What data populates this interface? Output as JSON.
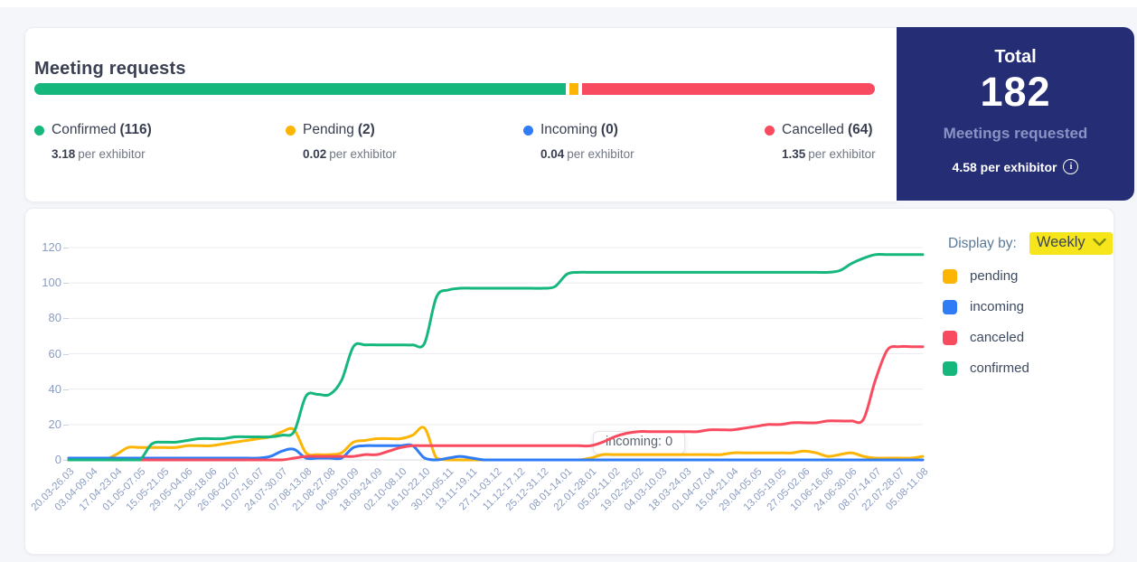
{
  "colors": {
    "confirmed": "#15b77d",
    "pending": "#fcb405",
    "incoming": "#2e7cf6",
    "cancelled": "#f94b5f",
    "navy": "#252e75",
    "highlight": "#f7e51c",
    "grid": "#ebecf1",
    "zero_line": "#d9dbe3"
  },
  "header": {
    "title": "Meeting requests",
    "stats": [
      {
        "key": "confirmed",
        "label": "Confirmed",
        "count": "(116)",
        "count_num": 116,
        "per": "3.18",
        "per_suffix": "per exhibitor",
        "color": "#15b77d"
      },
      {
        "key": "pending",
        "label": "Pending",
        "count": "(2)",
        "count_num": 2,
        "per": "0.02",
        "per_suffix": "per exhibitor",
        "color": "#fcb405"
      },
      {
        "key": "incoming",
        "label": "Incoming",
        "count": "(0)",
        "count_num": 0,
        "per": "0.04",
        "per_suffix": "per exhibitor",
        "color": "#2e7cf6"
      },
      {
        "key": "cancelled",
        "label": "Cancelled",
        "count": "(64)",
        "count_num": 64,
        "per": "1.35",
        "per_suffix": "per exhibitor",
        "color": "#f94b5f"
      }
    ]
  },
  "total_panel": {
    "title": "Total",
    "value": "182",
    "subtitle": "Meetings requested",
    "per": "4.58 per exhibitor"
  },
  "controls": {
    "display_by_label": "Display by:",
    "display_by_value": "Weekly"
  },
  "chart_legend": [
    {
      "label": "pending",
      "color": "#fcb405"
    },
    {
      "label": "incoming",
      "color": "#2e7cf6"
    },
    {
      "label": "canceled",
      "color": "#f94b5f"
    },
    {
      "label": "confirmed",
      "color": "#15b77d"
    }
  ],
  "tooltip": {
    "text": "incoming: 0"
  },
  "chart_data": {
    "type": "line",
    "x_axis": "calendar weeks (dd.mm-dd.mm), one point per week, every 2nd week labeled",
    "x_labels": [
      "20.03-26.03",
      "03.04-09.04",
      "17.04-23.04",
      "01.05-07.05",
      "15.05-21.05",
      "29.05-04.06",
      "12.06-18.06",
      "26.06-02.07",
      "10.07-16.07",
      "24.07-30.07",
      "07.08-13.08",
      "21.08-27.08",
      "04.09-10.09",
      "18.09-24.09",
      "02.10-08.10",
      "16.10-22.10",
      "30.10-05.11",
      "13.11-19.11",
      "27.11-03.12",
      "11.12-17.12",
      "25.12-31.12",
      "08.01-14.01",
      "22.01-28.01",
      "05.02-11.02",
      "19.02-25.02",
      "04.03-10.03",
      "18.03-24.03",
      "01.04-07.04",
      "15.04-21.04",
      "29.04-05.05",
      "13.05-19.05",
      "27.05-02.06",
      "10.06-16.06",
      "24.06-30.06",
      "08.07-14.07",
      "22.07-28.07",
      "05.08-11.08"
    ],
    "x_label_every_n_points": 2,
    "y_ticks": [
      0,
      20,
      40,
      60,
      80,
      100,
      120
    ],
    "ylim": [
      0,
      120
    ],
    "grid": true,
    "legend_position": "right",
    "series": [
      {
        "name": "pending",
        "color": "#fcb405",
        "values": [
          0,
          0,
          0,
          0,
          3,
          7,
          7,
          7,
          7,
          7,
          8,
          8,
          8,
          9,
          10,
          11,
          12,
          13,
          16,
          17,
          4,
          3,
          3,
          4,
          10,
          11,
          12,
          12,
          12,
          14,
          18,
          1,
          0,
          0,
          0,
          0,
          0,
          0,
          0,
          0,
          0,
          0,
          0,
          0,
          1,
          3,
          3,
          3,
          3,
          3,
          3,
          3,
          3,
          3,
          3,
          3,
          4,
          4,
          4,
          4,
          4,
          4,
          5,
          4,
          2,
          3,
          4,
          2,
          1,
          1,
          1,
          1,
          2
        ]
      },
      {
        "name": "incoming",
        "color": "#2e7cf6",
        "values": [
          1,
          1,
          1,
          1,
          1,
          1,
          1,
          1,
          1,
          1,
          1,
          1,
          1,
          1,
          1,
          1,
          1,
          2,
          5,
          6,
          1,
          1,
          1,
          1,
          7,
          8,
          8,
          8,
          8,
          8,
          1,
          0,
          1,
          2,
          1,
          0,
          0,
          0,
          0,
          0,
          0,
          0,
          0,
          0,
          0,
          0,
          0,
          0,
          0,
          0,
          0,
          0,
          0,
          0,
          0,
          0,
          0,
          0,
          0,
          0,
          0,
          0,
          0,
          0,
          0,
          0,
          0,
          0,
          0,
          0,
          0,
          0,
          0
        ]
      },
      {
        "name": "canceled",
        "color": "#f94b5f",
        "values": [
          0,
          0,
          0,
          0,
          0,
          0,
          0,
          0,
          0,
          0,
          0,
          0,
          0,
          0,
          0,
          0,
          0,
          0,
          0,
          1,
          2,
          2,
          2,
          2,
          2,
          3,
          3,
          5,
          7,
          8,
          8,
          8,
          8,
          8,
          8,
          8,
          8,
          8,
          8,
          8,
          8,
          8,
          8,
          8,
          8,
          10,
          13,
          15,
          16,
          16,
          16,
          16,
          16,
          16,
          17,
          17,
          17,
          18,
          19,
          20,
          20,
          21,
          21,
          21,
          22,
          22,
          22,
          23,
          45,
          62,
          64,
          64,
          64
        ]
      },
      {
        "name": "confirmed",
        "color": "#15b77d",
        "values": [
          0,
          0,
          0,
          0,
          0,
          0,
          0,
          9,
          10,
          10,
          11,
          12,
          12,
          12,
          13,
          13,
          13,
          13,
          14,
          16,
          36,
          37,
          37,
          45,
          64,
          65,
          65,
          65,
          65,
          65,
          66,
          92,
          96,
          97,
          97,
          97,
          97,
          97,
          97,
          97,
          97,
          98,
          105,
          106,
          106,
          106,
          106,
          106,
          106,
          106,
          106,
          106,
          106,
          106,
          106,
          106,
          106,
          106,
          106,
          106,
          106,
          106,
          106,
          106,
          106,
          107,
          111,
          114,
          116,
          116,
          116,
          116,
          116
        ]
      }
    ]
  }
}
